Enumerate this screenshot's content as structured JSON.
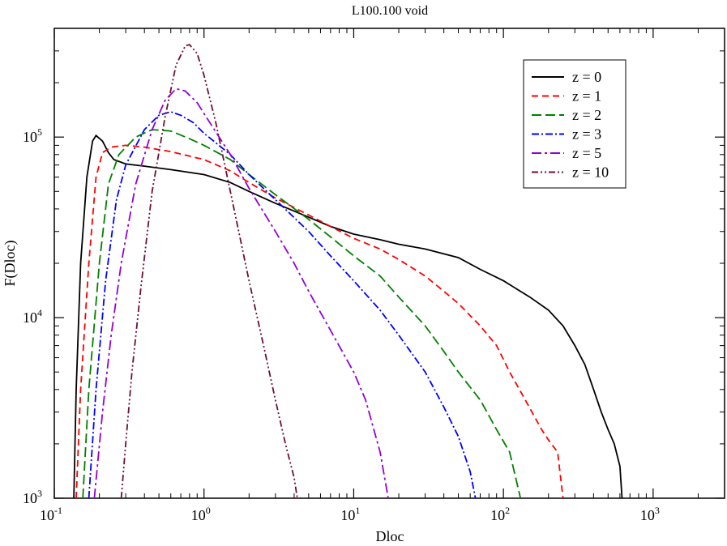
{
  "chart_data": {
    "type": "line",
    "title": "L100.100 void",
    "xlabel": "Dloc",
    "ylabel": "F(Dloc)",
    "xscale": "log",
    "yscale": "log",
    "xlim": [
      0.1,
      3000
    ],
    "ylim": [
      1000,
      400000
    ],
    "grid": false,
    "legend_position": "top-right",
    "x_ticks": [
      {
        "value": 0.1,
        "base": "10",
        "exp": "-1"
      },
      {
        "value": 1,
        "base": "10",
        "exp": "0"
      },
      {
        "value": 10,
        "base": "10",
        "exp": "1"
      },
      {
        "value": 100,
        "base": "10",
        "exp": "2"
      },
      {
        "value": 1000,
        "base": "10",
        "exp": "3"
      }
    ],
    "y_ticks": [
      {
        "value": 1000,
        "base": "10",
        "exp": "3"
      },
      {
        "value": 10000,
        "base": "10",
        "exp": "4"
      },
      {
        "value": 100000,
        "base": "10",
        "exp": "5"
      }
    ],
    "series": [
      {
        "name": "z = 0",
        "color": "#000000",
        "dash": "solid",
        "points": [
          [
            0.135,
            1000
          ],
          [
            0.14,
            4000
          ],
          [
            0.15,
            20000
          ],
          [
            0.165,
            60000
          ],
          [
            0.18,
            95000
          ],
          [
            0.19,
            102000
          ],
          [
            0.21,
            95000
          ],
          [
            0.23,
            82000
          ],
          [
            0.25,
            75000
          ],
          [
            0.3,
            71000
          ],
          [
            0.4,
            69000
          ],
          [
            0.6,
            66000
          ],
          [
            1,
            62000
          ],
          [
            1.5,
            56000
          ],
          [
            2,
            50000
          ],
          [
            3,
            43000
          ],
          [
            5,
            36000
          ],
          [
            7,
            32000
          ],
          [
            10,
            29000
          ],
          [
            15,
            27000
          ],
          [
            20,
            25500
          ],
          [
            30,
            24000
          ],
          [
            50,
            21500
          ],
          [
            70,
            18500
          ],
          [
            100,
            16000
          ],
          [
            150,
            13000
          ],
          [
            200,
            11000
          ],
          [
            250,
            9000
          ],
          [
            300,
            7000
          ],
          [
            350,
            5500
          ],
          [
            400,
            4000
          ],
          [
            450,
            3000
          ],
          [
            500,
            2400
          ],
          [
            550,
            2000
          ],
          [
            600,
            1500
          ],
          [
            620,
            1000
          ]
        ]
      },
      {
        "name": "z = 1",
        "color": "#ff0000",
        "dash": "8,5",
        "points": [
          [
            0.14,
            1000
          ],
          [
            0.15,
            4000
          ],
          [
            0.17,
            20000
          ],
          [
            0.19,
            60000
          ],
          [
            0.21,
            82000
          ],
          [
            0.24,
            88000
          ],
          [
            0.3,
            90000
          ],
          [
            0.4,
            88000
          ],
          [
            0.6,
            83000
          ],
          [
            1,
            75000
          ],
          [
            1.5,
            65000
          ],
          [
            2,
            56000
          ],
          [
            3,
            46000
          ],
          [
            5,
            37000
          ],
          [
            7,
            32000
          ],
          [
            10,
            27500
          ],
          [
            15,
            24000
          ],
          [
            20,
            21000
          ],
          [
            30,
            17000
          ],
          [
            40,
            14000
          ],
          [
            50,
            12000
          ],
          [
            70,
            9000
          ],
          [
            90,
            7000
          ],
          [
            110,
            5000
          ],
          [
            140,
            3500
          ],
          [
            180,
            2400
          ],
          [
            200,
            2100
          ],
          [
            230,
            1800
          ],
          [
            250,
            1000
          ]
        ]
      },
      {
        "name": "z = 2",
        "color": "#008000",
        "dash": "12,5",
        "points": [
          [
            0.155,
            1000
          ],
          [
            0.17,
            4000
          ],
          [
            0.2,
            20000
          ],
          [
            0.23,
            55000
          ],
          [
            0.27,
            80000
          ],
          [
            0.35,
            100000
          ],
          [
            0.45,
            110000
          ],
          [
            0.6,
            108000
          ],
          [
            0.8,
            98000
          ],
          [
            1,
            90000
          ],
          [
            1.5,
            75000
          ],
          [
            2,
            62000
          ],
          [
            3,
            48000
          ],
          [
            5,
            35000
          ],
          [
            7,
            28000
          ],
          [
            10,
            22000
          ],
          [
            15,
            17000
          ],
          [
            20,
            13000
          ],
          [
            30,
            9000
          ],
          [
            40,
            6500
          ],
          [
            50,
            5000
          ],
          [
            70,
            3500
          ],
          [
            90,
            2400
          ],
          [
            110,
            1800
          ],
          [
            130,
            1000
          ]
        ]
      },
      {
        "name": "z = 3",
        "color": "#0000ff",
        "dash": "9,3,2,3",
        "points": [
          [
            0.17,
            1000
          ],
          [
            0.19,
            4000
          ],
          [
            0.22,
            16000
          ],
          [
            0.26,
            45000
          ],
          [
            0.3,
            70000
          ],
          [
            0.4,
            110000
          ],
          [
            0.5,
            132000
          ],
          [
            0.6,
            138000
          ],
          [
            0.7,
            132000
          ],
          [
            0.85,
            120000
          ],
          [
            1,
            105000
          ],
          [
            1.5,
            80000
          ],
          [
            2,
            62000
          ],
          [
            3,
            45000
          ],
          [
            5,
            30000
          ],
          [
            7,
            22000
          ],
          [
            10,
            16000
          ],
          [
            15,
            11000
          ],
          [
            20,
            8000
          ],
          [
            30,
            5000
          ],
          [
            40,
            3200
          ],
          [
            50,
            2200
          ],
          [
            60,
            1400
          ],
          [
            65,
            1000
          ]
        ]
      },
      {
        "name": "z = 5",
        "color": "#9400d3",
        "dash": "12,4,3,4",
        "points": [
          [
            0.185,
            1000
          ],
          [
            0.21,
            3000
          ],
          [
            0.24,
            8000
          ],
          [
            0.28,
            20000
          ],
          [
            0.35,
            55000
          ],
          [
            0.45,
            110000
          ],
          [
            0.55,
            160000
          ],
          [
            0.65,
            185000
          ],
          [
            0.75,
            180000
          ],
          [
            0.9,
            155000
          ],
          [
            1,
            135000
          ],
          [
            1.5,
            80000
          ],
          [
            2,
            52000
          ],
          [
            3,
            30000
          ],
          [
            4,
            20000
          ],
          [
            5,
            14000
          ],
          [
            7,
            8500
          ],
          [
            10,
            5000
          ],
          [
            12,
            3500
          ],
          [
            15,
            1800
          ],
          [
            17,
            1000
          ]
        ]
      },
      {
        "name": "z = 10",
        "color": "#6b0f3a",
        "dash": "8,3,2,3,2,3",
        "points": [
          [
            0.28,
            1000
          ],
          [
            0.3,
            2000
          ],
          [
            0.33,
            5000
          ],
          [
            0.38,
            15000
          ],
          [
            0.45,
            50000
          ],
          [
            0.55,
            130000
          ],
          [
            0.65,
            250000
          ],
          [
            0.75,
            320000
          ],
          [
            0.8,
            325000
          ],
          [
            0.9,
            290000
          ],
          [
            1,
            220000
          ],
          [
            1.2,
            120000
          ],
          [
            1.5,
            50000
          ],
          [
            2,
            16000
          ],
          [
            2.5,
            7000
          ],
          [
            3,
            3500
          ],
          [
            3.5,
            2000
          ],
          [
            4,
            1300
          ],
          [
            4.2,
            1000
          ]
        ]
      }
    ]
  }
}
